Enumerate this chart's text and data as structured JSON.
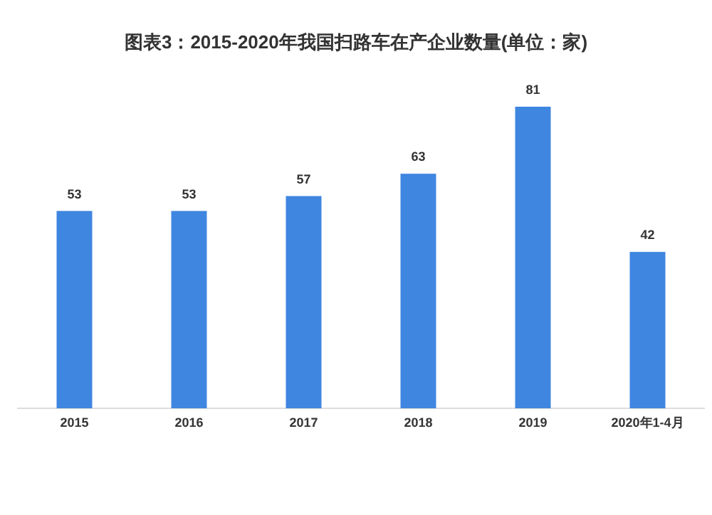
{
  "chart_data": {
    "type": "bar",
    "title": "图表3：2015-2020年我国扫路车在产企业数量(单位：家)",
    "categories": [
      "2015",
      "2016",
      "2017",
      "2018",
      "2019",
      "2020年1-4月"
    ],
    "values": [
      53,
      53,
      57,
      63,
      81,
      42
    ],
    "color": "#3f86e0",
    "data_labels": true
  }
}
